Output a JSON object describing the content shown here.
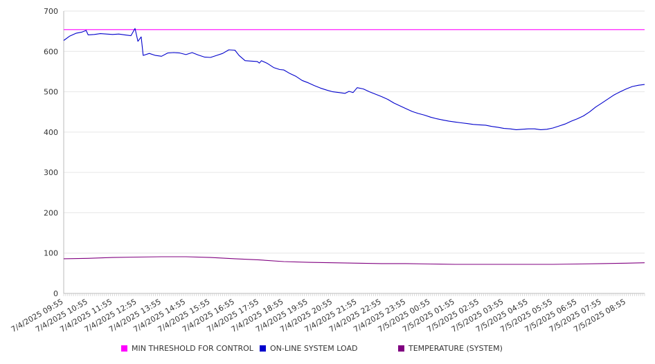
{
  "chart_data": {
    "type": "line",
    "x_ticks": [
      "7/4/2025 09:55",
      "7/4/2025 10:55",
      "7/4/2025 11:55",
      "7/4/2025 12:55",
      "7/4/2025 13:55",
      "7/4/2025 14:55",
      "7/4/2025 15:55",
      "7/4/2025 16:55",
      "7/4/2025 17:55",
      "7/4/2025 18:55",
      "7/4/2025 19:55",
      "7/4/2025 20:55",
      "7/4/2025 21:55",
      "7/4/2025 22:55",
      "7/4/2025 23:55",
      "7/5/2025 00:55",
      "7/5/2025 01:55",
      "7/5/2025 02:55",
      "7/5/2025 03:55",
      "7/5/2025 04:55",
      "7/5/2025 05:55",
      "7/5/2025 06:55",
      "7/5/2025 07:55",
      "7/5/2025 08:55"
    ],
    "x_range": [
      "7/4/2025 09:55",
      "7/5/2025 09:40"
    ],
    "ylim": [
      0,
      700
    ],
    "y_ticks": [
      "0",
      "100",
      "200",
      "300",
      "400",
      "500",
      "600",
      "700"
    ],
    "grid": true,
    "legend_position": "bottom",
    "series": [
      {
        "name": "MIN THRESHOLD FOR CONTROL",
        "color": "#ff00ff",
        "points": [
          [
            "7/4/2025 09:55",
            654
          ],
          [
            "7/5/2025 09:40",
            654
          ]
        ]
      },
      {
        "name": "ON-LINE SYSTEM LOAD",
        "color": "#0000cc",
        "points": [
          [
            "7/4/2025 09:55",
            627
          ],
          [
            "7/4/2025 10:10",
            638
          ],
          [
            "7/4/2025 10:25",
            645
          ],
          [
            "7/4/2025 10:40",
            648
          ],
          [
            "7/4/2025 10:50",
            652
          ],
          [
            "7/4/2025 10:55",
            641
          ],
          [
            "7/4/2025 11:10",
            642
          ],
          [
            "7/4/2025 11:25",
            644
          ],
          [
            "7/4/2025 11:40",
            643
          ],
          [
            "7/4/2025 11:55",
            642
          ],
          [
            "7/4/2025 12:10",
            643
          ],
          [
            "7/4/2025 12:25",
            641
          ],
          [
            "7/4/2025 12:40",
            639
          ],
          [
            "7/4/2025 12:50",
            657
          ],
          [
            "7/4/2025 12:57",
            625
          ],
          [
            "7/4/2025 13:05",
            636
          ],
          [
            "7/4/2025 13:10",
            590
          ],
          [
            "7/4/2025 13:25",
            595
          ],
          [
            "7/4/2025 13:40",
            590
          ],
          [
            "7/4/2025 13:55",
            588
          ],
          [
            "7/4/2025 14:10",
            596
          ],
          [
            "7/4/2025 14:25",
            597
          ],
          [
            "7/4/2025 14:40",
            596
          ],
          [
            "7/4/2025 14:55",
            592
          ],
          [
            "7/4/2025 15:10",
            597
          ],
          [
            "7/4/2025 15:25",
            591
          ],
          [
            "7/4/2025 15:40",
            586
          ],
          [
            "7/4/2025 15:55",
            585
          ],
          [
            "7/4/2025 16:10",
            590
          ],
          [
            "7/4/2025 16:25",
            595
          ],
          [
            "7/4/2025 16:40",
            604
          ],
          [
            "7/4/2025 16:55",
            603
          ],
          [
            "7/4/2025 17:05",
            590
          ],
          [
            "7/4/2025 17:20",
            577
          ],
          [
            "7/4/2025 17:35",
            576
          ],
          [
            "7/4/2025 17:50",
            575
          ],
          [
            "7/4/2025 17:55",
            571
          ],
          [
            "7/4/2025 18:00",
            577
          ],
          [
            "7/4/2025 18:15",
            570
          ],
          [
            "7/4/2025 18:30",
            560
          ],
          [
            "7/4/2025 18:45",
            555
          ],
          [
            "7/4/2025 18:55",
            554
          ],
          [
            "7/4/2025 19:10",
            545
          ],
          [
            "7/4/2025 19:25",
            538
          ],
          [
            "7/4/2025 19:40",
            528
          ],
          [
            "7/4/2025 19:55",
            522
          ],
          [
            "7/4/2025 20:10",
            515
          ],
          [
            "7/4/2025 20:25",
            509
          ],
          [
            "7/4/2025 20:40",
            504
          ],
          [
            "7/4/2025 20:55",
            500
          ],
          [
            "7/4/2025 21:10",
            498
          ],
          [
            "7/4/2025 21:25",
            496
          ],
          [
            "7/4/2025 21:35",
            501
          ],
          [
            "7/4/2025 21:45",
            498
          ],
          [
            "7/4/2025 21:55",
            510
          ],
          [
            "7/4/2025 22:10",
            507
          ],
          [
            "7/4/2025 22:25",
            500
          ],
          [
            "7/4/2025 22:40",
            494
          ],
          [
            "7/4/2025 22:55",
            488
          ],
          [
            "7/4/2025 23:10",
            481
          ],
          [
            "7/4/2025 23:25",
            472
          ],
          [
            "7/4/2025 23:40",
            465
          ],
          [
            "7/4/2025 23:55",
            458
          ],
          [
            "7/5/2025 00:10",
            451
          ],
          [
            "7/5/2025 00:25",
            446
          ],
          [
            "7/5/2025 00:40",
            442
          ],
          [
            "7/5/2025 00:55",
            437
          ],
          [
            "7/5/2025 01:10",
            433
          ],
          [
            "7/5/2025 01:25",
            430
          ],
          [
            "7/5/2025 01:40",
            427
          ],
          [
            "7/5/2025 01:55",
            425
          ],
          [
            "7/5/2025 02:10",
            423
          ],
          [
            "7/5/2025 02:25",
            421
          ],
          [
            "7/5/2025 02:40",
            419
          ],
          [
            "7/5/2025 02:55",
            418
          ],
          [
            "7/5/2025 03:10",
            417
          ],
          [
            "7/5/2025 03:25",
            414
          ],
          [
            "7/5/2025 03:40",
            412
          ],
          [
            "7/5/2025 03:55",
            409
          ],
          [
            "7/5/2025 04:10",
            408
          ],
          [
            "7/5/2025 04:25",
            406
          ],
          [
            "7/5/2025 04:40",
            407
          ],
          [
            "7/5/2025 04:55",
            408
          ],
          [
            "7/5/2025 05:10",
            408
          ],
          [
            "7/5/2025 05:25",
            406
          ],
          [
            "7/5/2025 05:40",
            407
          ],
          [
            "7/5/2025 05:55",
            410
          ],
          [
            "7/5/2025 06:10",
            415
          ],
          [
            "7/5/2025 06:25",
            420
          ],
          [
            "7/5/2025 06:40",
            427
          ],
          [
            "7/5/2025 06:55",
            433
          ],
          [
            "7/5/2025 07:10",
            440
          ],
          [
            "7/5/2025 07:25",
            450
          ],
          [
            "7/5/2025 07:40",
            462
          ],
          [
            "7/5/2025 07:55",
            472
          ],
          [
            "7/5/2025 08:10",
            482
          ],
          [
            "7/5/2025 08:25",
            492
          ],
          [
            "7/5/2025 08:40",
            500
          ],
          [
            "7/5/2025 08:55",
            507
          ],
          [
            "7/5/2025 09:10",
            513
          ],
          [
            "7/5/2025 09:25",
            516
          ],
          [
            "7/5/2025 09:40",
            518
          ]
        ]
      },
      {
        "name": "TEMPERATURE (SYSTEM)",
        "color": "#800080",
        "points": [
          [
            "7/4/2025 09:55",
            86
          ],
          [
            "7/4/2025 10:55",
            87
          ],
          [
            "7/4/2025 11:55",
            89
          ],
          [
            "7/4/2025 12:55",
            90
          ],
          [
            "7/4/2025 13:55",
            91
          ],
          [
            "7/4/2025 14:55",
            91
          ],
          [
            "7/4/2025 15:55",
            89
          ],
          [
            "7/4/2025 16:55",
            86
          ],
          [
            "7/4/2025 17:55",
            83
          ],
          [
            "7/4/2025 18:55",
            79
          ],
          [
            "7/4/2025 19:55",
            77
          ],
          [
            "7/4/2025 20:55",
            76
          ],
          [
            "7/4/2025 21:55",
            75
          ],
          [
            "7/4/2025 22:55",
            74
          ],
          [
            "7/4/2025 23:55",
            74
          ],
          [
            "7/5/2025 00:55",
            73
          ],
          [
            "7/5/2025 01:55",
            72
          ],
          [
            "7/5/2025 02:55",
            72
          ],
          [
            "7/5/2025 03:55",
            72
          ],
          [
            "7/5/2025 04:55",
            72
          ],
          [
            "7/5/2025 05:55",
            72
          ],
          [
            "7/5/2025 06:55",
            73
          ],
          [
            "7/5/2025 07:55",
            74
          ],
          [
            "7/5/2025 08:55",
            75
          ],
          [
            "7/5/2025 09:40",
            76
          ]
        ]
      }
    ]
  }
}
